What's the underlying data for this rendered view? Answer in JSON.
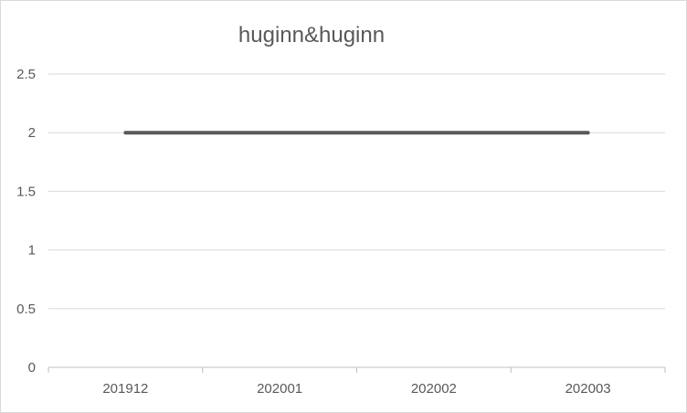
{
  "chart_data": {
    "type": "line",
    "title": "huginn&huginn",
    "categories": [
      "201912",
      "202001",
      "202002",
      "202003"
    ],
    "series": [
      {
        "values": [
          2,
          2,
          2,
          2
        ],
        "color": "#595959"
      }
    ],
    "ylim": [
      0,
      2.5
    ],
    "yticks": [
      "0",
      "0.5",
      "1",
      "1.5",
      "2",
      "2.5"
    ],
    "grid": true,
    "legend": "none"
  }
}
